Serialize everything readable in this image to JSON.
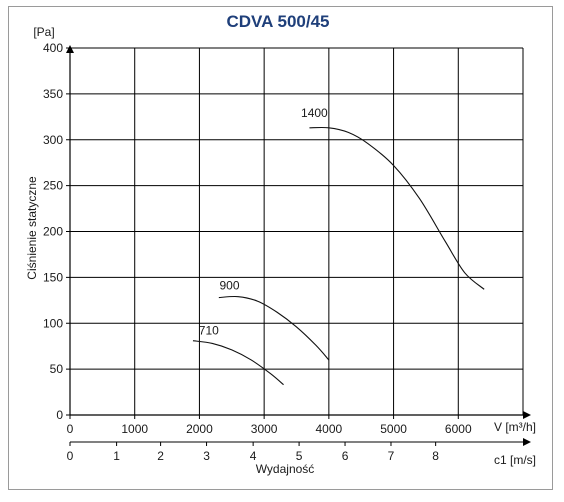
{
  "chart_data": {
    "type": "line",
    "title": "CDVA 500/45",
    "y_unit": "[Pa]",
    "ylabel": "Ciśnienie statyczne",
    "xlabel": "Wydajność",
    "x_unit": "V [m³/h]",
    "x2_unit": "c1 [m/s]",
    "xlim": [
      0,
      7000
    ],
    "ylim": [
      0,
      400
    ],
    "x_ticks": [
      "0",
      "1000",
      "2000",
      "3000",
      "4000",
      "5000",
      "6000"
    ],
    "y_ticks": [
      "0",
      "50",
      "100",
      "150",
      "200",
      "250",
      "300",
      "350",
      "400"
    ],
    "x2_ticks": [
      {
        "label": "0",
        "x": 0
      },
      {
        "label": "1",
        "x": 720
      },
      {
        "label": "2",
        "x": 1400
      },
      {
        "label": "3",
        "x": 2110
      },
      {
        "label": "4",
        "x": 2830
      },
      {
        "label": "5",
        "x": 3540
      },
      {
        "label": "6",
        "x": 4250
      },
      {
        "label": "7",
        "x": 4960
      },
      {
        "label": "8",
        "x": 5650
      }
    ],
    "grid": true,
    "series": [
      {
        "name": "710",
        "label_at": [
          1990,
          88
        ],
        "points": [
          [
            1900,
            81
          ],
          [
            2200,
            78
          ],
          [
            2500,
            71
          ],
          [
            2800,
            60
          ],
          [
            3100,
            45
          ],
          [
            3300,
            33
          ]
        ]
      },
      {
        "name": "900",
        "label_at": [
          2310,
          137
        ],
        "points": [
          [
            2300,
            128
          ],
          [
            2600,
            129
          ],
          [
            2900,
            124
          ],
          [
            3200,
            112
          ],
          [
            3500,
            96
          ],
          [
            3800,
            76
          ],
          [
            4000,
            60
          ]
        ]
      },
      {
        "name": "1400",
        "label_at": [
          3570,
          325
        ],
        "points": [
          [
            3700,
            313
          ],
          [
            4000,
            313
          ],
          [
            4300,
            308
          ],
          [
            4600,
            296
          ],
          [
            5000,
            272
          ],
          [
            5400,
            236
          ],
          [
            5800,
            189
          ],
          [
            6100,
            155
          ],
          [
            6400,
            137
          ]
        ]
      }
    ]
  }
}
